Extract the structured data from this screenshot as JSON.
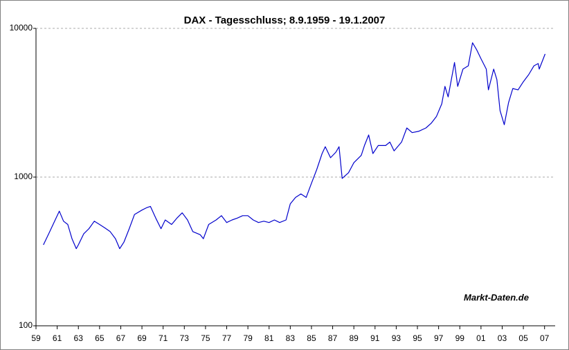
{
  "chart_data": {
    "type": "line",
    "title": "DAX - Tagesschluss; 8.9.1959 - 19.1.2007",
    "annotation": "Markt-Daten.de",
    "log_y": true,
    "grid": true,
    "x": [
      1959.7,
      1960.3,
      1960.8,
      1961.2,
      1961.6,
      1962.0,
      1962.4,
      1962.8,
      1963.0,
      1963.5,
      1964.0,
      1964.5,
      1965.0,
      1965.5,
      1966.0,
      1966.5,
      1966.9,
      1967.3,
      1967.8,
      1968.3,
      1969.0,
      1969.5,
      1969.8,
      1970.3,
      1970.8,
      1971.2,
      1971.8,
      1972.3,
      1972.8,
      1973.3,
      1973.8,
      1974.5,
      1974.8,
      1975.3,
      1976.0,
      1976.5,
      1977.0,
      1977.5,
      1978.0,
      1978.5,
      1979.0,
      1979.5,
      1980.0,
      1980.5,
      1981.0,
      1981.5,
      1982.0,
      1982.6,
      1983.0,
      1983.5,
      1984.0,
      1984.5,
      1985.0,
      1985.5,
      1986.0,
      1986.3,
      1986.8,
      1987.3,
      1987.6,
      1987.9,
      1988.5,
      1989.0,
      1989.7,
      1990.0,
      1990.4,
      1990.8,
      1991.3,
      1992.0,
      1992.4,
      1992.8,
      1993.5,
      1994.0,
      1994.5,
      1995.1,
      1995.8,
      1996.3,
      1996.8,
      1997.3,
      1997.6,
      1997.9,
      1998.5,
      1998.8,
      1999.3,
      1999.8,
      2000.2,
      2000.6,
      2001.0,
      2001.5,
      2001.7,
      2002.2,
      2002.5,
      2002.8,
      2003.2,
      2003.6,
      2004.0,
      2004.5,
      2005.0,
      2005.5,
      2006.0,
      2006.4,
      2006.5,
      2007.05
    ],
    "series": [
      {
        "color": "#0000cc",
        "values": [
          350,
          430,
          513,
          590,
          505,
          480,
          385,
          330,
          350,
          415,
          450,
          505,
          480,
          455,
          430,
          385,
          330,
          365,
          450,
          560,
          600,
          625,
          635,
          530,
          450,
          515,
          480,
          530,
          575,
          515,
          430,
          410,
          385,
          480,
          515,
          550,
          495,
          515,
          530,
          550,
          550,
          515,
          495,
          505,
          495,
          515,
          495,
          515,
          660,
          730,
          770,
          730,
          910,
          1125,
          1440,
          1600,
          1350,
          1470,
          1600,
          980,
          1070,
          1250,
          1400,
          1630,
          1920,
          1440,
          1630,
          1630,
          1720,
          1500,
          1720,
          2140,
          1990,
          2030,
          2140,
          2300,
          2560,
          3110,
          4070,
          3460,
          5900,
          4070,
          5320,
          5600,
          8000,
          7170,
          6240,
          5320,
          3860,
          5320,
          4520,
          2800,
          2250,
          3170,
          3940,
          3860,
          4380,
          4880,
          5600,
          5800,
          5320,
          6730
        ]
      }
    ],
    "xlim": [
      1959,
      2008
    ],
    "ylim": [
      100,
      10000
    ],
    "yticks": [
      100,
      1000,
      10000
    ],
    "xticks": [
      {
        "value": 1959,
        "label": "59"
      },
      {
        "value": 1961,
        "label": "61"
      },
      {
        "value": 1963,
        "label": "63"
      },
      {
        "value": 1965,
        "label": "65"
      },
      {
        "value": 1967,
        "label": "67"
      },
      {
        "value": 1969,
        "label": "69"
      },
      {
        "value": 1971,
        "label": "71"
      },
      {
        "value": 1973,
        "label": "73"
      },
      {
        "value": 1975,
        "label": "75"
      },
      {
        "value": 1977,
        "label": "77"
      },
      {
        "value": 1979,
        "label": "79"
      },
      {
        "value": 1981,
        "label": "81"
      },
      {
        "value": 1983,
        "label": "83"
      },
      {
        "value": 1985,
        "label": "85"
      },
      {
        "value": 1987,
        "label": "87"
      },
      {
        "value": 1989,
        "label": "89"
      },
      {
        "value": 1991,
        "label": "91"
      },
      {
        "value": 1993,
        "label": "93"
      },
      {
        "value": 1995,
        "label": "95"
      },
      {
        "value": 1997,
        "label": "97"
      },
      {
        "value": 1999,
        "label": "99"
      },
      {
        "value": 2001,
        "label": "01"
      },
      {
        "value": 2003,
        "label": "03"
      },
      {
        "value": 2005,
        "label": "05"
      },
      {
        "value": 2007,
        "label": "07"
      }
    ]
  }
}
